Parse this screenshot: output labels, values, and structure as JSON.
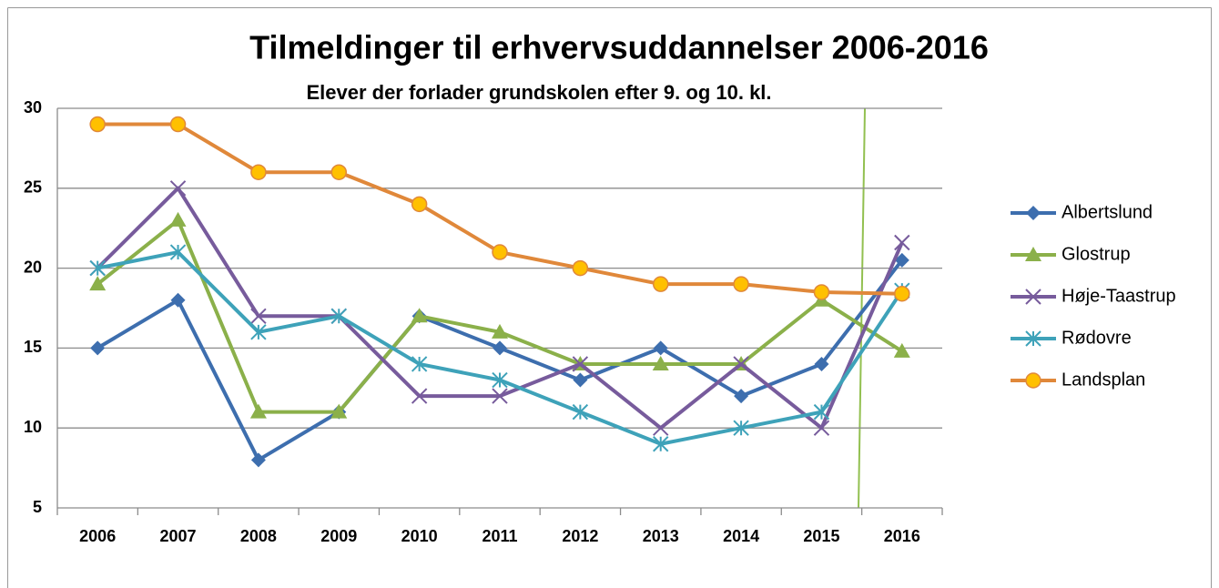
{
  "chart_data": {
    "type": "line",
    "title": "Tilmeldinger til erhvervsuddannelser 2006-2016",
    "subtitle": "Elever der forlader grundskolen efter 9. og 10. kl.",
    "categories": [
      "2006",
      "2007",
      "2008",
      "2009",
      "2010",
      "2011",
      "2012",
      "2013",
      "2014",
      "2015",
      "2016"
    ],
    "series": [
      {
        "name": "Albertslund",
        "color": "#3d6eae",
        "marker": "diamond",
        "values": [
          15,
          18,
          8,
          11,
          17,
          15,
          13,
          15,
          12,
          14,
          20.5
        ]
      },
      {
        "name": "Glostrup",
        "color": "#8bb04a",
        "marker": "triangle",
        "values": [
          19,
          23,
          11,
          11,
          17,
          16,
          14,
          14,
          14,
          18,
          14.8
        ]
      },
      {
        "name": "Høje-Taastrup",
        "color": "#775b9c",
        "marker": "x",
        "values": [
          20,
          25,
          17,
          17,
          12,
          12,
          14,
          10,
          14,
          10,
          21.6
        ]
      },
      {
        "name": "Rødovre",
        "color": "#3ea2b9",
        "marker": "star",
        "values": [
          20,
          21,
          16,
          17,
          14,
          13,
          11,
          9,
          10,
          11,
          18.6
        ]
      },
      {
        "name": "Landsplan",
        "color": "#e0883a",
        "marker": "circle",
        "values": [
          29,
          29,
          26,
          26,
          24,
          21,
          20,
          19,
          19,
          18.5,
          18.4
        ]
      }
    ],
    "ylim": [
      5,
      30
    ],
    "yticks": [
      5,
      10,
      15,
      20,
      25,
      30
    ],
    "grid": true,
    "legend": "right"
  }
}
